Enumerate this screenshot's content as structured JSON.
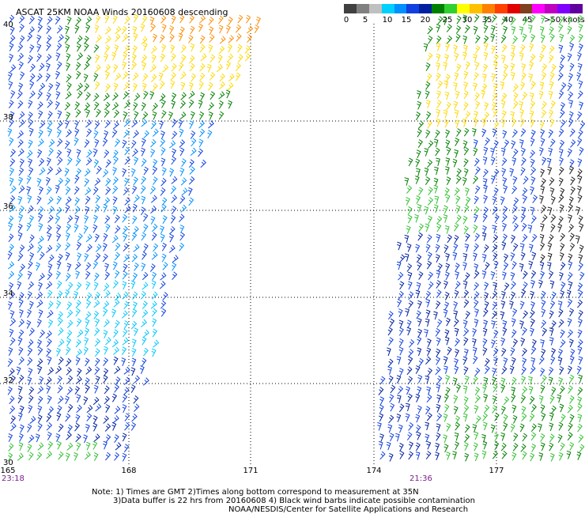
{
  "title": "ASCAT 25KM NOAA Winds 20160608 descending",
  "legend": {
    "colors": [
      "#404040",
      "#808080",
      "#c0c0c0",
      "#00d0ff",
      "#0090ff",
      "#1040e0",
      "#0020a0",
      "#008000",
      "#30d030",
      "#ffff00",
      "#ffc000",
      "#ff8000",
      "#ff4000",
      "#e00000",
      "#804020",
      "#ff00ff",
      "#c000c0",
      "#8000ff",
      "#6000a0"
    ],
    "labels": [
      "0",
      "5",
      "10",
      "15",
      "20",
      "25",
      "30",
      "35",
      "40",
      "45",
      ">50 knots"
    ]
  },
  "axes": {
    "lat_labels": [
      "40",
      "38",
      "36",
      "34",
      "32",
      "30"
    ],
    "lon_labels": [
      "165",
      "168",
      "171",
      "174",
      "177"
    ]
  },
  "times": [
    "23:18",
    "21:36"
  ],
  "notes": [
    "Note: 1) Times are GMT 2)Times along bottom correspond to measurement at 35N",
    "3)Data buffer is 22 hrs from 20160608 4) Black wind barbs indicate possible contamination",
    "NOAA/NESDIS/Center for Satellite Applications and Research"
  ]
}
